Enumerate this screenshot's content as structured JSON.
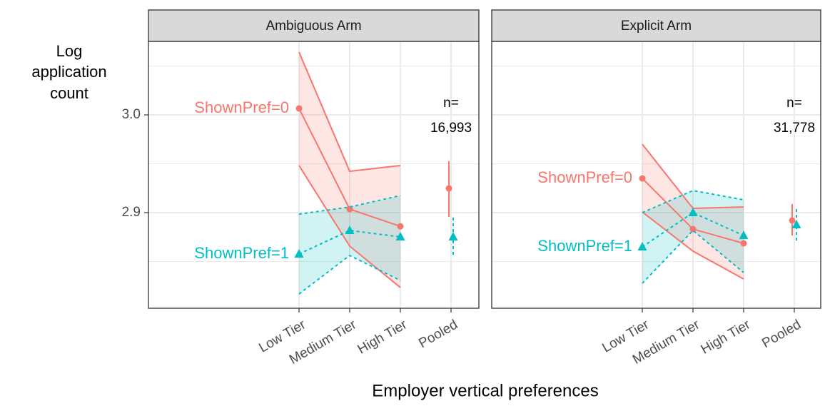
{
  "axes": {
    "xlabel": "Employer vertical preferences",
    "ylabel": [
      "Log",
      "application",
      "count"
    ]
  },
  "chart_data": [
    {
      "type": "line",
      "title": "Ambiguous Arm",
      "categories": [
        "Low Tier",
        "Medium Tier",
        "High Tier",
        "Pooled"
      ],
      "ylim": [
        2.8022,
        3.0752
      ],
      "yticks": [
        2.9,
        {
          "value": 3.0,
          "label": "3.0"
        }
      ],
      "grid": true,
      "annotation": [
        "n=",
        "16,993"
      ],
      "series": [
        {
          "name": "ShownPref=0",
          "color": "#F8766D",
          "linestyle": "solid",
          "marker": "circle",
          "values": [
            3.0066,
            2.9036,
            2.886,
            2.9248
          ],
          "lower": [
            2.9482,
            2.8657,
            2.8234,
            2.8956
          ],
          "upper": [
            3.0642,
            2.9423,
            2.9482,
            2.9526
          ]
        },
        {
          "name": "ShownPref=1",
          "color": "#00BFC4",
          "linestyle": "dashed",
          "marker": "triangle",
          "values": [
            2.8577,
            2.8818,
            2.8752,
            2.8752
          ],
          "lower": [
            2.8168,
            2.8562,
            2.8307,
            2.854
          ],
          "upper": [
            2.8985,
            2.9058,
            2.9175,
            2.8949
          ]
        }
      ]
    },
    {
      "type": "line",
      "title": "Explicit Arm",
      "categories": [
        "Low Tier",
        "Medium Tier",
        "High Tier",
        "Pooled"
      ],
      "ylim": [
        2.8022,
        3.0752
      ],
      "yticks": [
        2.9,
        {
          "value": 3.0,
          "label": "3.0"
        }
      ],
      "grid": true,
      "annotation": [
        "n=",
        "31,778"
      ],
      "series": [
        {
          "name": "ShownPref=0",
          "color": "#F8766D",
          "linestyle": "solid",
          "marker": "circle",
          "values": [
            2.935,
            2.8832,
            2.8686,
            2.892
          ],
          "lower": [
            2.9007,
            2.8606,
            2.8321,
            2.8766
          ],
          "upper": [
            2.97,
            2.9044,
            2.9058,
            2.9088
          ]
        },
        {
          "name": "ShownPref=1",
          "color": "#00BFC4",
          "linestyle": "dashed",
          "marker": "triangle",
          "values": [
            2.865,
            2.9,
            2.8766,
            2.8876
          ],
          "lower": [
            2.8277,
            2.8818,
            2.8387,
            2.8693
          ],
          "upper": [
            2.9,
            2.9226,
            2.9131,
            2.9036
          ]
        }
      ]
    }
  ]
}
